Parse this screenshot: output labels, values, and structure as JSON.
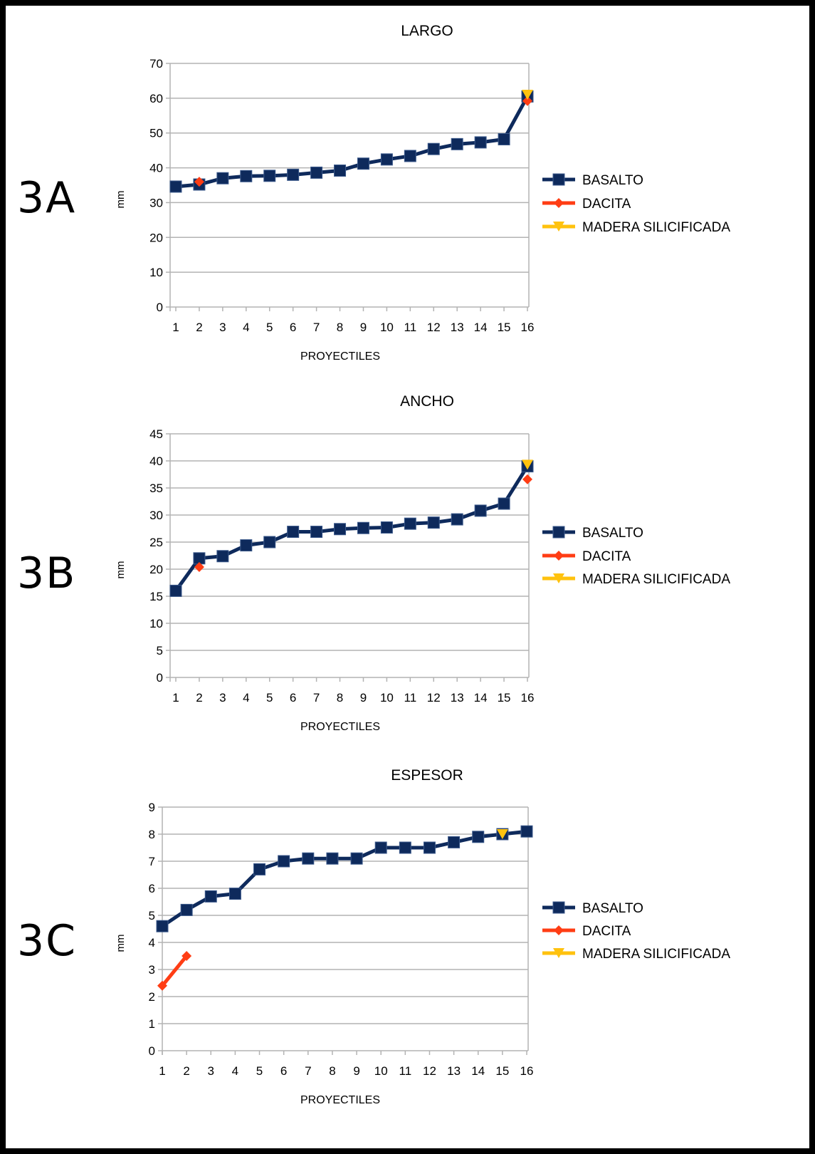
{
  "panel_labels": [
    "3A",
    "3B",
    "3C"
  ],
  "colors": {
    "basalto": "#0e2a5c",
    "dacita": "#ff3d14",
    "madera": "#ffc20e",
    "grid": "#b3b3b3"
  },
  "chart_data": [
    {
      "type": "line",
      "title": "LARGO",
      "xlabel": "PROYECTILES",
      "ylabel": "mm",
      "ylim": [
        0,
        70
      ],
      "ystep": 10,
      "grid": true,
      "legend": "right",
      "categories": [
        1,
        2,
        3,
        4,
        5,
        6,
        7,
        8,
        9,
        10,
        11,
        12,
        13,
        14,
        15,
        16
      ],
      "series": [
        {
          "name": "BASALTO",
          "marker": "square",
          "values": [
            34.6,
            35.2,
            37,
            37.6,
            37.7,
            38,
            38.6,
            39.2,
            41.2,
            42.4,
            43.4,
            45.4,
            46.8,
            47.3,
            48.2,
            60.5
          ]
        },
        {
          "name": "DACITA",
          "marker": "diamond",
          "values": [
            null,
            36,
            null,
            null,
            null,
            null,
            null,
            null,
            null,
            null,
            null,
            null,
            null,
            null,
            null,
            59.2
          ]
        },
        {
          "name": "MADERA SILICIFICADA",
          "marker": "triangle",
          "values": [
            null,
            null,
            null,
            null,
            null,
            null,
            null,
            null,
            null,
            null,
            null,
            null,
            null,
            null,
            null,
            61
          ]
        }
      ]
    },
    {
      "type": "line",
      "title": "ANCHO",
      "xlabel": "PROYECTILES",
      "ylabel": "mm",
      "ylim": [
        0,
        45
      ],
      "ystep": 5,
      "grid": true,
      "legend": "right",
      "categories": [
        1,
        2,
        3,
        4,
        5,
        6,
        7,
        8,
        9,
        10,
        11,
        12,
        13,
        14,
        15,
        16
      ],
      "series": [
        {
          "name": "BASALTO",
          "marker": "square",
          "values": [
            16,
            22,
            22.4,
            24.4,
            25,
            26.9,
            26.9,
            27.4,
            27.6,
            27.7,
            28.4,
            28.6,
            29.2,
            30.8,
            32.1,
            39
          ]
        },
        {
          "name": "DACITA",
          "marker": "diamond",
          "values": [
            null,
            20.4,
            null,
            null,
            null,
            null,
            null,
            null,
            null,
            null,
            null,
            null,
            null,
            null,
            null,
            36.6
          ]
        },
        {
          "name": "MADERA SILICIFICADA",
          "marker": "triangle",
          "values": [
            null,
            null,
            null,
            null,
            null,
            null,
            null,
            null,
            null,
            null,
            null,
            null,
            null,
            null,
            null,
            39.3
          ]
        }
      ]
    },
    {
      "type": "line",
      "title": "ESPESOR",
      "xlabel": "PROYECTILES",
      "ylabel": "mm",
      "ylim": [
        0,
        9
      ],
      "ystep": 1,
      "grid": true,
      "legend": "right",
      "categories": [
        1,
        2,
        3,
        4,
        5,
        6,
        7,
        8,
        9,
        10,
        11,
        12,
        13,
        14,
        15,
        16
      ],
      "series": [
        {
          "name": "BASALTO",
          "marker": "square",
          "values": [
            4.6,
            5.2,
            5.7,
            5.8,
            6.7,
            7.0,
            7.1,
            7.1,
            7.1,
            7.5,
            7.5,
            7.5,
            7.7,
            7.9,
            8.0,
            8.1
          ]
        },
        {
          "name": "DACITA",
          "marker": "diamond",
          "values": [
            2.4,
            3.5,
            null,
            null,
            null,
            null,
            null,
            null,
            null,
            null,
            null,
            null,
            null,
            null,
            null,
            null
          ]
        },
        {
          "name": "MADERA SILICIFICADA",
          "marker": "triangle",
          "values": [
            null,
            null,
            null,
            null,
            null,
            null,
            null,
            null,
            null,
            null,
            null,
            null,
            null,
            null,
            8.0,
            null
          ]
        }
      ]
    }
  ]
}
